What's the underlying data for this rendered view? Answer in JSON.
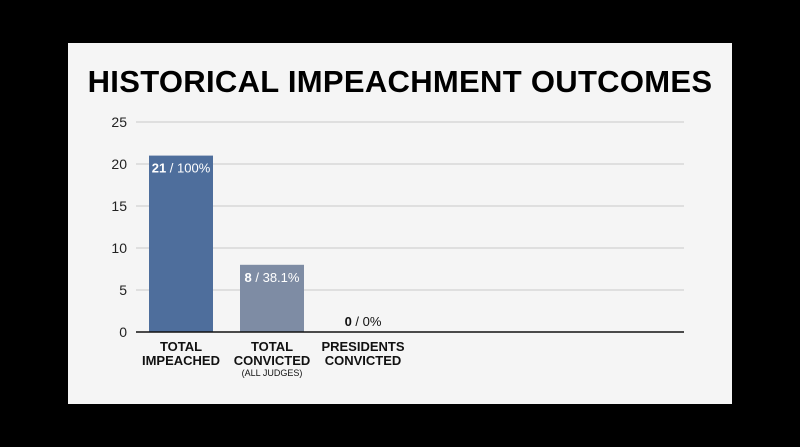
{
  "chart_data": {
    "type": "bar",
    "title": "HISTORICAL IMPEACHMENT OUTCOMES",
    "categories": [
      {
        "lines": [
          "TOTAL",
          "IMPEACHED"
        ],
        "sub": ""
      },
      {
        "lines": [
          "TOTAL",
          "CONVICTED"
        ],
        "sub": "(ALL JUDGES)"
      },
      {
        "lines": [
          "PRESIDENTS",
          "CONVICTED"
        ],
        "sub": ""
      }
    ],
    "values": [
      21,
      8,
      0
    ],
    "value_labels": [
      {
        "count": "21",
        "pct": " / 100%"
      },
      {
        "count": "8",
        "pct": " / 38.1%"
      },
      {
        "count": "0",
        "pct": " / 0%"
      }
    ],
    "yticks": [
      0,
      5,
      10,
      15,
      20,
      25
    ],
    "ylim": [
      0,
      25
    ],
    "grid": true,
    "colors": [
      "#4e6e9c",
      "#7e8ca4",
      "#9aa6b8"
    ]
  }
}
